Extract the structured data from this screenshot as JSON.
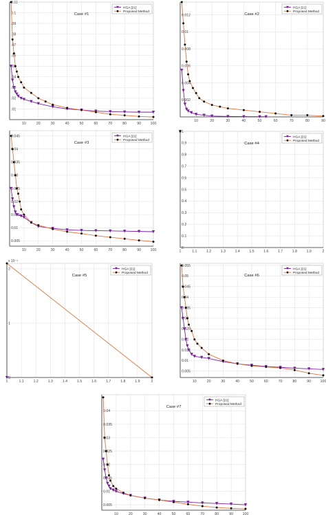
{
  "colors": {
    "hga": "#7a1fa2",
    "proposed_line": "#e8743b",
    "proposed_marker": "#111111",
    "grid": "#e3e3e3",
    "axis": "#333333"
  },
  "legend": {
    "hga_label": "HGA [21]",
    "proposed_label": "Proposed Method"
  },
  "chart_data": [
    {
      "type": "line",
      "title": "Case #1",
      "xlabel": "",
      "ylabel": "",
      "xlim": [
        0,
        100
      ],
      "ylim": [
        0,
        0.11
      ],
      "xticks": [
        10,
        20,
        30,
        40,
        50,
        60,
        70,
        80,
        90,
        100
      ],
      "xticklabels": [
        "10",
        "20",
        "30",
        "40",
        "50",
        "60",
        "70",
        "80",
        "90",
        "100"
      ],
      "yticks": [
        0.01,
        0.02,
        0.03,
        0.04,
        0.05,
        0.06,
        0.07,
        0.08,
        0.09,
        0.1,
        0.11
      ],
      "yticklabels": [
        ".01",
        ".02",
        ".03",
        ".04",
        ".05",
        ".06",
        ".07",
        ".08",
        ".09",
        "0.1",
        "0.11"
      ],
      "grid": true,
      "legend_position": "top-right",
      "series": [
        {
          "name": "HGA [21]",
          "x": [
            1,
            2,
            3,
            4,
            5,
            6,
            8,
            10,
            15,
            20,
            30,
            40,
            50,
            60,
            70,
            80,
            90,
            100
          ],
          "y": [
            0.05,
            0.037,
            0.03,
            0.026,
            0.024,
            0.022,
            0.02,
            0.019,
            0.017,
            0.015,
            0.012,
            0.01,
            0.009,
            0.008,
            0.0075,
            0.0072,
            0.007,
            0.007
          ]
        },
        {
          "name": "Proposed Method",
          "x": [
            1,
            2,
            3,
            4,
            5,
            6,
            8,
            10,
            15,
            20,
            25,
            30,
            40,
            50,
            60,
            70,
            80,
            90,
            100
          ],
          "y": [
            0.11,
            0.075,
            0.062,
            0.05,
            0.045,
            0.04,
            0.035,
            0.03,
            0.025,
            0.02,
            0.017,
            0.014,
            0.011,
            0.009,
            0.007,
            0.005,
            0.004,
            0.003,
            0.0025
          ]
        }
      ]
    },
    {
      "type": "line",
      "title": "Case #2",
      "xlabel": "",
      "ylabel": "",
      "xlim": [
        0,
        90
      ],
      "ylim": [
        0,
        0.0135
      ],
      "xticks": [
        10,
        20,
        30,
        40,
        50,
        60,
        70,
        80,
        90
      ],
      "xticklabels": [
        "10",
        "20",
        "30",
        "40",
        "50",
        "60",
        "70",
        "80",
        "90"
      ],
      "yticks": [
        0.002,
        0.004,
        0.006,
        0.008,
        0.01,
        0.012
      ],
      "yticklabels": [
        "0.002",
        "0.004",
        "0.006",
        "0.008",
        "0.01",
        "0.012"
      ],
      "grid": true,
      "legend_position": "top-right",
      "series": [
        {
          "name": "HGA [21]",
          "x": [
            1,
            2,
            3,
            4,
            5,
            7,
            10,
            15,
            20,
            30,
            40,
            50,
            54
          ],
          "y": [
            0.0055,
            0.0031,
            0.0015,
            0.0009,
            0.0007,
            0.0005,
            0.0003,
            0.0002,
            0.0001,
            5e-05,
            3e-05,
            2e-05,
            2e-05
          ]
        },
        {
          "name": "Proposed Method",
          "x": [
            1,
            2,
            3,
            4,
            5,
            6,
            8,
            10,
            12,
            15,
            20,
            25,
            30,
            40,
            50,
            60,
            70,
            80,
            90
          ],
          "y": [
            0.0135,
            0.011,
            0.0085,
            0.0065,
            0.005,
            0.0042,
            0.0034,
            0.0028,
            0.0022,
            0.0018,
            0.0014,
            0.0012,
            0.001,
            0.0008,
            0.0006,
            0.0004,
            0.0002,
            0.0002,
            0.0001
          ]
        }
      ]
    },
    {
      "type": "line",
      "title": "Case #3",
      "xlabel": "",
      "ylabel": "",
      "xlim": [
        0,
        100
      ],
      "ylim": [
        0.003,
        0.047
      ],
      "xticks": [
        10,
        20,
        30,
        40,
        50,
        60,
        70,
        80,
        90,
        100
      ],
      "xticklabels": [
        "10",
        "20",
        "30",
        "40",
        "50",
        "60",
        "70",
        "80",
        "90",
        "100"
      ],
      "yticks": [
        0.005,
        0.01,
        0.015,
        0.02,
        0.025,
        0.03,
        0.035,
        0.04,
        0.045
      ],
      "yticklabels": [
        "0.005",
        "0.01",
        "0.015",
        "0.02",
        "0.025",
        "0.03",
        "0.035",
        "0.04",
        "0.045"
      ],
      "grid": true,
      "legend_position": "top-right",
      "series": [
        {
          "name": "HGA [21]",
          "x": [
            1,
            2,
            3,
            4,
            5,
            8,
            10,
            15,
            20,
            30,
            40,
            50,
            60,
            70,
            80,
            90,
            100
          ],
          "y": [
            0.025,
            0.021,
            0.018,
            0.016,
            0.015,
            0.0145,
            0.014,
            0.012,
            0.0105,
            0.0098,
            0.0092,
            0.009,
            0.0089,
            0.0088,
            0.0087,
            0.0086,
            0.0085
          ]
        },
        {
          "name": "Proposed Method",
          "x": [
            1,
            2,
            3,
            4,
            5,
            6,
            7,
            8,
            10,
            15,
            20,
            30,
            40,
            50,
            60,
            70,
            80,
            90,
            100
          ],
          "y": [
            0.045,
            0.04,
            0.035,
            0.03,
            0.025,
            0.023,
            0.02,
            0.017,
            0.015,
            0.012,
            0.011,
            0.0095,
            0.0085,
            0.0078,
            0.007,
            0.0064,
            0.0058,
            0.0052,
            0.0047
          ]
        }
      ]
    },
    {
      "type": "line",
      "title": "Case #4",
      "xlabel": "",
      "ylabel": "",
      "xlim": [
        1,
        2
      ],
      "ylim": [
        0,
        1
      ],
      "xticks": [
        1,
        1.1,
        1.2,
        1.3,
        1.4,
        1.5,
        1.6,
        1.7,
        1.8,
        1.9,
        2
      ],
      "xticklabels": [
        "1",
        "1.1",
        "1.2",
        "1.3",
        "1.4",
        "1.5",
        "1.6",
        "1.7",
        "1.8",
        "1.9",
        "2"
      ],
      "yticks": [
        0,
        0.1,
        0.2,
        0.3,
        0.4,
        0.5,
        0.6,
        0.7,
        0.8,
        0.9,
        1
      ],
      "yticklabels": [
        "0",
        "0.1",
        "0.2",
        "0.3",
        "0.4",
        "0.5",
        "0.6",
        "0.7",
        "0.8",
        "0.9",
        "1"
      ],
      "grid": true,
      "legend_position": "top-right",
      "series": [
        {
          "name": "HGA [21]",
          "x": [
            1
          ],
          "y": [
            1
          ]
        },
        {
          "name": "Proposed Method",
          "x": [
            1
          ],
          "y": [
            1
          ]
        }
      ]
    },
    {
      "type": "line",
      "title": "Case #5",
      "xlabel": "",
      "ylabel": "",
      "xlim": [
        1,
        2
      ],
      "ylim": [
        0,
        2.1
      ],
      "xticks": [
        1,
        1.1,
        1.2,
        1.3,
        1.4,
        1.5,
        1.6,
        1.7,
        1.8,
        1.9,
        2
      ],
      "xticklabels": [
        "1",
        "1.1",
        "1.2",
        "1.3",
        "1.4",
        "1.5",
        "1.6",
        "1.7",
        "1.8",
        "1.9",
        "2"
      ],
      "yticks": [
        0,
        1,
        2
      ],
      "yticklabels": [
        "0",
        "1",
        "2"
      ],
      "yexponent": "x 10⁻⁴",
      "grid": true,
      "legend_position": "top-right",
      "series": [
        {
          "name": "HGA [21]",
          "x": [
            1
          ],
          "y": [
            0
          ]
        },
        {
          "name": "Proposed Method",
          "x": [
            1,
            2
          ],
          "y": [
            2.1,
            0
          ]
        }
      ]
    },
    {
      "type": "line",
      "title": "Case #6",
      "xlabel": "",
      "ylabel": "",
      "xlim": [
        0,
        100
      ],
      "ylim": [
        0.002,
        0.056
      ],
      "xticks": [
        10,
        20,
        30,
        40,
        50,
        60,
        70,
        80,
        90,
        100
      ],
      "xticklabels": [
        "10",
        "20",
        "30",
        "40",
        "50",
        "60",
        "70",
        "80",
        "90",
        "100"
      ],
      "yticks": [
        0.005,
        0.01,
        0.015,
        0.02,
        0.025,
        0.03,
        0.035,
        0.04,
        0.045,
        0.05,
        0.055
      ],
      "yticklabels": [
        "0.005",
        "0.01",
        "0.015",
        "0.02",
        "0.025",
        "0.03",
        "0.035",
        "0.04",
        "0.045",
        "0.05",
        "0.055"
      ],
      "grid": true,
      "legend_position": "top-right",
      "series": [
        {
          "name": "HGA [21]",
          "x": [
            1,
            2,
            3,
            4,
            5,
            6,
            8,
            10,
            15,
            20,
            30,
            40,
            50,
            60,
            70,
            80,
            90,
            100
          ],
          "y": [
            0.035,
            0.03,
            0.025,
            0.02,
            0.017,
            0.015,
            0.013,
            0.012,
            0.0115,
            0.011,
            0.0095,
            0.0085,
            0.0078,
            0.0072,
            0.0068,
            0.0064,
            0.0061,
            0.0058
          ]
        },
        {
          "name": "Proposed Method",
          "x": [
            1,
            2,
            3,
            4,
            5,
            6,
            8,
            10,
            12,
            15,
            20,
            30,
            40,
            50,
            60,
            70,
            80,
            90,
            100
          ],
          "y": [
            0.055,
            0.045,
            0.04,
            0.035,
            0.03,
            0.027,
            0.024,
            0.02,
            0.018,
            0.016,
            0.013,
            0.01,
            0.0085,
            0.0075,
            0.007,
            0.0065,
            0.0055,
            0.004,
            0.003
          ]
        }
      ]
    },
    {
      "type": "line",
      "title": "Case #7",
      "xlabel": "",
      "ylabel": "",
      "xlim": [
        0,
        100
      ],
      "ylim": [
        0.003,
        0.046
      ],
      "xticks": [
        10,
        20,
        30,
        40,
        50,
        60,
        70,
        80,
        90,
        100
      ],
      "xticklabels": [
        "10",
        "20",
        "30",
        "40",
        "50",
        "60",
        "70",
        "80",
        "90",
        "100"
      ],
      "yticks": [
        0.005,
        0.01,
        0.015,
        0.02,
        0.025,
        0.03,
        0.035,
        0.04
      ],
      "yticklabels": [
        "0.005",
        "0.01",
        "0.015",
        "0.02",
        "0.025",
        "0.03",
        "0.035",
        "0.04"
      ],
      "grid": true,
      "legend_position": "top-right",
      "series": [
        {
          "name": "HGA [21]",
          "x": [
            1,
            2,
            3,
            4,
            5,
            6,
            8,
            10,
            15,
            20,
            30,
            40,
            50,
            60,
            70,
            80,
            90,
            100
          ],
          "y": [
            0.022,
            0.018,
            0.015,
            0.013,
            0.012,
            0.011,
            0.0105,
            0.01,
            0.0092,
            0.0085,
            0.0075,
            0.0068,
            0.0063,
            0.006,
            0.0057,
            0.0055,
            0.0053,
            0.005
          ]
        },
        {
          "name": "Proposed Method",
          "x": [
            1,
            2,
            3,
            4,
            5,
            6,
            8,
            10,
            15,
            20,
            30,
            40,
            50,
            60,
            70,
            80,
            90,
            100
          ],
          "y": [
            0.045,
            0.03,
            0.025,
            0.02,
            0.016,
            0.014,
            0.012,
            0.011,
            0.0095,
            0.0085,
            0.0075,
            0.0068,
            0.006,
            0.0052,
            0.0045,
            0.004,
            0.0037,
            0.0035
          ]
        }
      ]
    }
  ]
}
